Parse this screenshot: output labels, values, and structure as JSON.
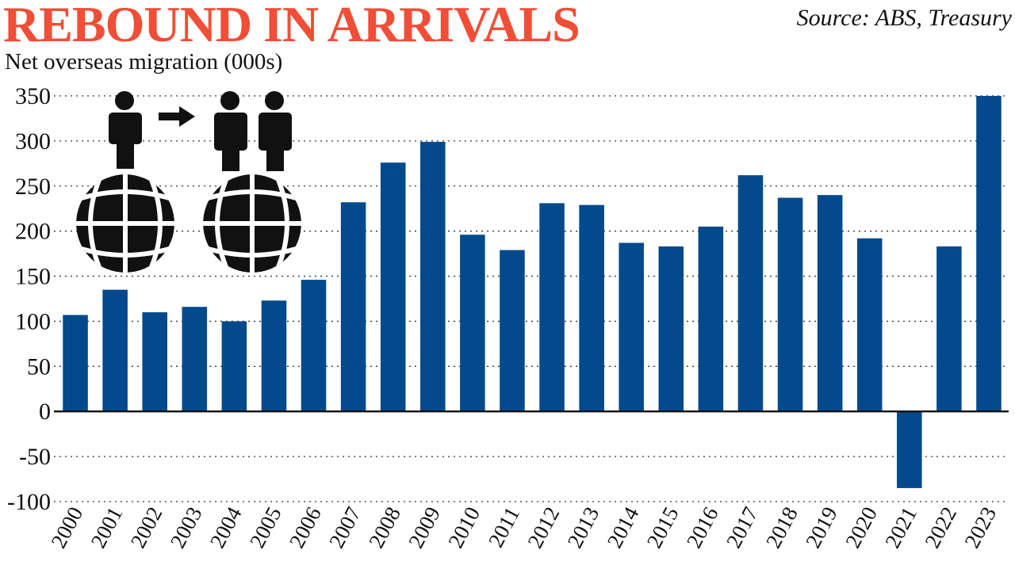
{
  "header": {
    "title": "REBOUND IN ARRIVALS",
    "source": "Source: ABS, Treasury",
    "subtitle": "Net overseas migration (000s)"
  },
  "colors": {
    "title": "#f04e37",
    "bar": "#034a8c",
    "grid": "#333333",
    "icon": "#111111"
  },
  "icons": [
    "person-icon",
    "arrow-right-icon",
    "globe-icon"
  ],
  "chart_data": {
    "type": "bar",
    "title": "REBOUND IN ARRIVALS",
    "subtitle": "Net overseas migration (000s)",
    "categories": [
      "2000",
      "2001",
      "2002",
      "2003",
      "2004",
      "2005",
      "2006",
      "2007",
      "2008",
      "2009",
      "2010",
      "2011",
      "2012",
      "2013",
      "2014",
      "2015",
      "2016",
      "2017",
      "2018",
      "2019",
      "2020",
      "2021",
      "2022",
      "2023"
    ],
    "values": [
      107,
      135,
      110,
      116,
      100,
      123,
      146,
      232,
      276,
      299,
      196,
      179,
      231,
      229,
      187,
      183,
      205,
      262,
      237,
      240,
      192,
      -85,
      183,
      350
    ],
    "yticks": [
      350,
      300,
      250,
      200,
      150,
      100,
      50,
      0,
      -50,
      -100
    ],
    "ylim": [
      -100,
      350
    ],
    "grid": true,
    "legend": "none"
  }
}
